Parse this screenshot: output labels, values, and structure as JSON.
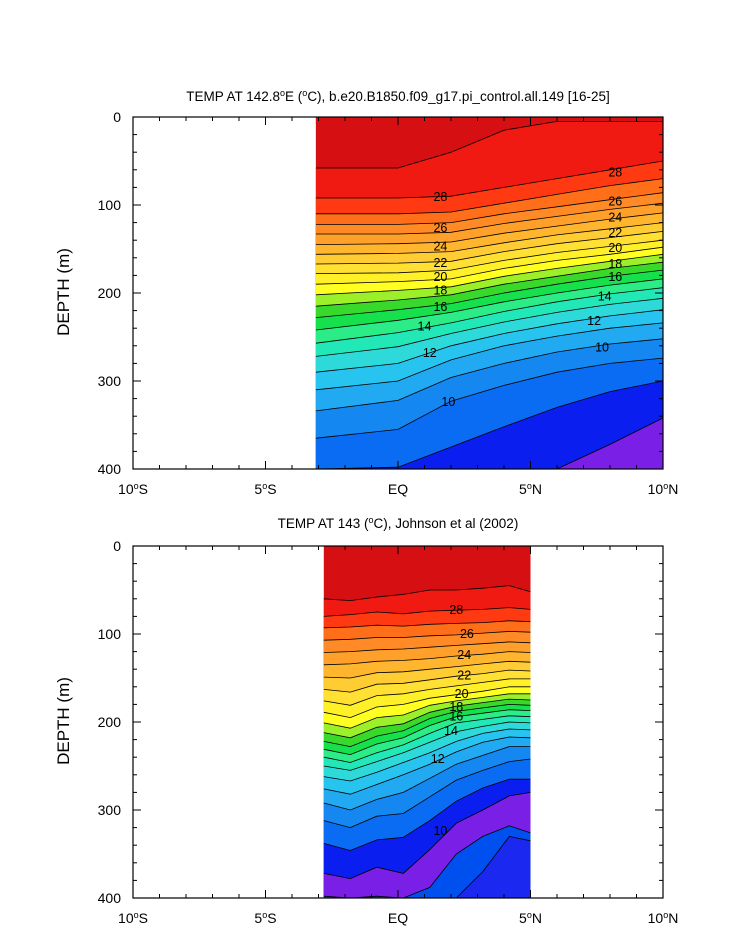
{
  "chart_data": [
    {
      "type": "contour",
      "title": "TEMP AT 142.8°E (°C), b.e20.B1850.f09_g17.pi_control.all.149 [16-25]",
      "title_parts": {
        "pre": "TEMP AT 142.8",
        "sup1": "o",
        "mid": "E (",
        "sup2": "o",
        "post": "C), b.e20.B1850.f09_g17.pi_control.all.149 [16-25]"
      },
      "xlabel": "",
      "ylabel": "DEPTH (m)",
      "xlim": [
        -10,
        10
      ],
      "ylim": [
        0,
        400
      ],
      "y_reversed": true,
      "data_extent_x": [
        -3.1,
        10
      ],
      "xticks": [
        {
          "value": -10,
          "num": "10",
          "sup": "o",
          "hemi": "S"
        },
        {
          "value": -5,
          "num": "5",
          "sup": "o",
          "hemi": "S"
        },
        {
          "value": 0,
          "num": "EQ",
          "sup": "",
          "hemi": ""
        },
        {
          "value": 5,
          "num": "5",
          "sup": "o",
          "hemi": "N"
        },
        {
          "value": 10,
          "num": "10",
          "sup": "o",
          "hemi": "N"
        }
      ],
      "yticks": [
        0,
        100,
        200,
        300,
        400
      ],
      "contour_interval": 1,
      "levels_labeled": [
        28,
        26,
        24,
        22,
        20,
        18,
        16,
        14,
        12,
        10
      ],
      "isotherm_depth_m": {
        "x": [
          -3,
          0,
          2,
          4,
          6,
          8,
          10
        ],
        "29": [
          58,
          58,
          40,
          15,
          5,
          5,
          5
        ],
        "28": [
          92,
          92,
          90,
          80,
          70,
          60,
          50
        ],
        "27": [
          110,
          110,
          108,
          98,
          88,
          78,
          70
        ],
        "26": [
          122,
          122,
          120,
          110,
          102,
          94,
          86
        ],
        "25": [
          133,
          133,
          131,
          121,
          113,
          105,
          98
        ],
        "24": [
          145,
          144,
          142,
          132,
          124,
          116,
          109
        ],
        "23": [
          156,
          155,
          153,
          143,
          134,
          127,
          120
        ],
        "22": [
          167,
          166,
          164,
          153,
          144,
          137,
          130
        ],
        "21": [
          178,
          177,
          174,
          163,
          154,
          147,
          140
        ],
        "20": [
          190,
          187,
          184,
          172,
          163,
          156,
          148
        ],
        "19": [
          202,
          197,
          193,
          181,
          172,
          164,
          156
        ],
        "18": [
          215,
          208,
          202,
          190,
          181,
          172,
          165
        ],
        "17": [
          228,
          219,
          212,
          200,
          190,
          181,
          174
        ],
        "16": [
          242,
          231,
          222,
          210,
          200,
          191,
          184
        ],
        "15": [
          257,
          245,
          234,
          221,
          210,
          201,
          194
        ],
        "14": [
          272,
          261,
          246,
          233,
          222,
          213,
          206
        ],
        "13": [
          290,
          280,
          260,
          246,
          235,
          226,
          219
        ],
        "12": [
          310,
          300,
          276,
          260,
          249,
          240,
          234
        ],
        "11": [
          334,
          322,
          296,
          280,
          267,
          258,
          252
        ],
        "10": [
          365,
          355,
          323,
          305,
          290,
          280,
          274
        ],
        "9": [
          400,
          398,
          375,
          352,
          330,
          312,
          300
        ],
        "8": [
          null,
          null,
          null,
          null,
          400,
          372,
          342
        ]
      },
      "labels_at": [
        {
          "level": 28,
          "x": 1.6,
          "depth": 91
        },
        {
          "level": 26,
          "x": 1.6,
          "depth": 126
        },
        {
          "level": 24,
          "x": 1.6,
          "depth": 147
        },
        {
          "level": 22,
          "x": 1.6,
          "depth": 166
        },
        {
          "level": 20,
          "x": 1.6,
          "depth": 182
        },
        {
          "level": 18,
          "x": 1.6,
          "depth": 197
        },
        {
          "level": 16,
          "x": 1.6,
          "depth": 216
        },
        {
          "level": 14,
          "x": 1.0,
          "depth": 238
        },
        {
          "level": 12,
          "x": 1.2,
          "depth": 268
        },
        {
          "level": 10,
          "x": 1.9,
          "depth": 324
        },
        {
          "level": 28,
          "x": 8.2,
          "depth": 63
        },
        {
          "level": 26,
          "x": 8.2,
          "depth": 96
        },
        {
          "level": 24,
          "x": 8.2,
          "depth": 114
        },
        {
          "level": 22,
          "x": 8.2,
          "depth": 132
        },
        {
          "level": 20,
          "x": 8.2,
          "depth": 149
        },
        {
          "level": 18,
          "x": 8.2,
          "depth": 167
        },
        {
          "level": 16,
          "x": 8.2,
          "depth": 182
        },
        {
          "level": 14,
          "x": 7.8,
          "depth": 204
        },
        {
          "level": 12,
          "x": 7.4,
          "depth": 232
        },
        {
          "level": 10,
          "x": 7.7,
          "depth": 262
        }
      ]
    },
    {
      "type": "contour",
      "title": "TEMP AT 143 (°C), Johnson et al (2002)",
      "title_parts": {
        "pre": "TEMP AT 143 (",
        "sup1": "o",
        "mid": "C), Johnson et al (2002)",
        "sup2": "",
        "post": ""
      },
      "xlabel": "",
      "ylabel": "DEPTH (m)",
      "xlim": [
        -10,
        10
      ],
      "ylim": [
        0,
        400
      ],
      "y_reversed": true,
      "data_extent_x": [
        -2.8,
        5
      ],
      "xticks": [
        {
          "value": -10,
          "num": "10",
          "sup": "o",
          "hemi": "S"
        },
        {
          "value": -5,
          "num": "5",
          "sup": "o",
          "hemi": "S"
        },
        {
          "value": 0,
          "num": "EQ",
          "sup": "",
          "hemi": ""
        },
        {
          "value": 5,
          "num": "5",
          "sup": "o",
          "hemi": "N"
        },
        {
          "value": 10,
          "num": "10",
          "sup": "o",
          "hemi": "N"
        }
      ],
      "yticks": [
        0,
        100,
        200,
        300,
        400
      ],
      "contour_interval": 1,
      "levels_labeled": [
        28,
        26,
        24,
        22,
        20,
        18,
        16,
        14,
        12,
        10
      ],
      "isotherm_depth_m": {
        "x": [
          -2.8,
          -1.8,
          -0.8,
          0.2,
          1.2,
          2.2,
          3.2,
          4.2,
          5
        ],
        "29": [
          60,
          62,
          58,
          55,
          50,
          50,
          48,
          45,
          52
        ],
        "28": [
          80,
          78,
          75,
          77,
          74,
          73,
          72,
          70,
          72
        ],
        "27": [
          93,
          92,
          90,
          91,
          89,
          88,
          87,
          85,
          86
        ],
        "26": [
          107,
          106,
          104,
          104,
          102,
          101,
          99,
          97,
          98
        ],
        "25": [
          121,
          120,
          118,
          117,
          115,
          113,
          111,
          109,
          110
        ],
        "24": [
          135,
          134,
          131,
          130,
          128,
          125,
          123,
          120,
          121
        ],
        "23": [
          149,
          150,
          144,
          143,
          140,
          137,
          134,
          131,
          132
        ],
        "22": [
          163,
          166,
          157,
          156,
          152,
          148,
          145,
          141,
          142
        ],
        "21": [
          176,
          181,
          170,
          168,
          163,
          159,
          155,
          151,
          151
        ],
        "20": [
          189,
          195,
          183,
          180,
          173,
          169,
          165,
          160,
          160
        ],
        "19": [
          201,
          207,
          195,
          192,
          181,
          176,
          172,
          168,
          168
        ],
        "18": [
          212,
          218,
          206,
          202,
          189,
          182,
          178,
          174,
          175
        ],
        "17": [
          222,
          228,
          216,
          210,
          196,
          188,
          184,
          180,
          181
        ],
        "16": [
          231,
          237,
          225,
          218,
          204,
          194,
          190,
          186,
          187
        ],
        "15": [
          240,
          246,
          235,
          226,
          213,
          201,
          197,
          193,
          194
        ],
        "14": [
          250,
          255,
          245,
          235,
          223,
          211,
          205,
          200,
          201
        ],
        "13": [
          262,
          267,
          257,
          246,
          235,
          222,
          213,
          208,
          209
        ],
        "12": [
          276,
          282,
          271,
          260,
          248,
          234,
          223,
          217,
          218
        ],
        "11": [
          292,
          300,
          288,
          280,
          264,
          248,
          238,
          228,
          228
        ],
        "10": [
          312,
          320,
          307,
          304,
          285,
          266,
          255,
          245,
          242
        ],
        "9": [
          338,
          346,
          334,
          331,
          312,
          290,
          275,
          265,
          265
        ],
        "8": [
          372,
          378,
          365,
          372,
          345,
          315,
          300,
          284,
          280
        ],
        "7": [
          398,
          400,
          398,
          400,
          388,
          350,
          330,
          318,
          326
        ],
        "6": [
          null,
          null,
          null,
          null,
          null,
          400,
          370,
          330,
          335
        ]
      },
      "labels_at": [
        {
          "level": 28,
          "x": 2.2,
          "depth": 73
        },
        {
          "level": 26,
          "x": 2.6,
          "depth": 100
        },
        {
          "level": 24,
          "x": 2.5,
          "depth": 124
        },
        {
          "level": 22,
          "x": 2.5,
          "depth": 147
        },
        {
          "level": 20,
          "x": 2.4,
          "depth": 168
        },
        {
          "level": 18,
          "x": 2.2,
          "depth": 183
        },
        {
          "level": 16,
          "x": 2.2,
          "depth": 194
        },
        {
          "level": 14,
          "x": 2.0,
          "depth": 210
        },
        {
          "level": 12,
          "x": 1.5,
          "depth": 242
        },
        {
          "level": 10,
          "x": 1.6,
          "depth": 324
        }
      ]
    }
  ],
  "colors": {
    "palette": {
      "6": "#1a28f0",
      "7": "#0050f0",
      "8": "#7a1fe6",
      "9": "#0a1ef0",
      "10": "#0a6cf2",
      "11": "#1487f0",
      "12": "#21a9f2",
      "13": "#26c4ee",
      "14": "#2ed9d9",
      "15": "#22e8b8",
      "16": "#2bec86",
      "17": "#16e04c",
      "18": "#38d92a",
      "19": "#9bf02a",
      "20": "#ffff22",
      "21": "#fff028",
      "22": "#ffe033",
      "23": "#ffcc33",
      "24": "#ffb62e",
      "25": "#ffa02a",
      "26": "#ff8a26",
      "27": "#ff6f1a",
      "28": "#ff3a12",
      "29": "#f01a12",
      "30": "#d50f12"
    }
  }
}
